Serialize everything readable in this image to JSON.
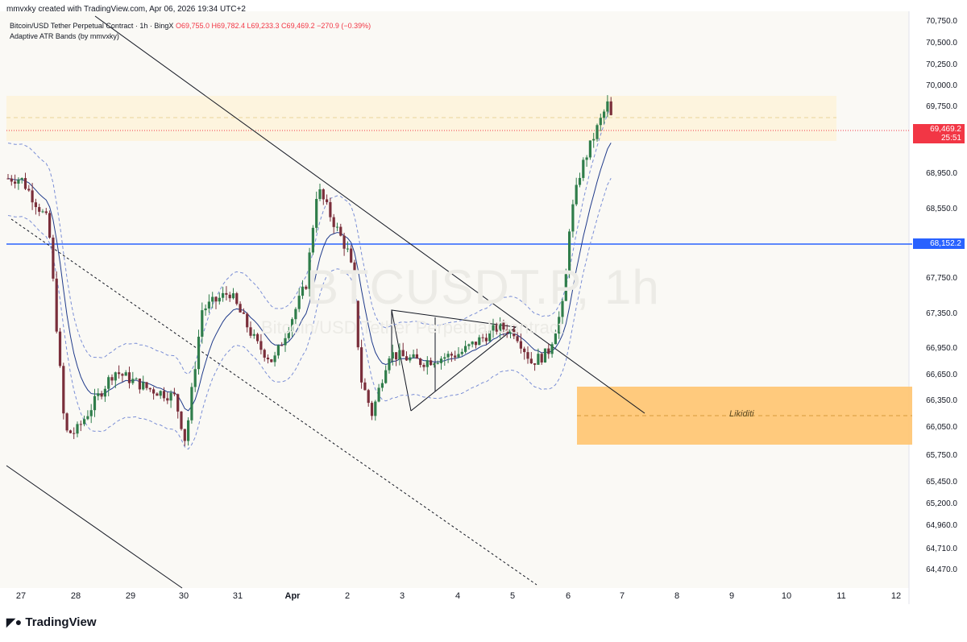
{
  "header": {
    "credit": "mmvxky created with TradingView.com, Apr 06, 2026 19:34 UTC+2",
    "symbol_line": "Bitcoin/USD Tether Perpetual Contract · 1h · BingX",
    "ohlc": "O69,755.0  H69,782.4  L69,233.3  C69,469.2  −270.9 (−0.39%)",
    "indicator": "Adaptive ATR Bands (by mmvxky)"
  },
  "watermark": {
    "ticker": "BTCUSDT.P, 1h",
    "name": "Bitcoin/USD Tether Perpetual Contract"
  },
  "brand": "TradingView",
  "price_tags": {
    "last": "69,469.2",
    "countdown": "25:51",
    "hline": "68,152.2",
    "last_color": "#f23645",
    "hline_color": "#2962ff"
  },
  "zone_label": "Likiditi",
  "chart_data": {
    "type": "candlestick",
    "title": "",
    "y_ticks": [
      "70,750.0",
      "70,500.0",
      "70,250.0",
      "70,000.0",
      "69,750.0",
      "68,950.0",
      "68,550.0",
      "67,750.0",
      "67,350.0",
      "66,950.0",
      "66,650.0",
      "66,350.0",
      "66,050.0",
      "65,750.0",
      "65,450.0",
      "65,200.0",
      "64,960.0",
      "64,710.0",
      "64,470.0"
    ],
    "x_ticks": [
      "27",
      "28",
      "29",
      "30",
      "31",
      "Apr",
      "2",
      "3",
      "4",
      "5",
      "6",
      "7",
      "8",
      "9",
      "10",
      "11",
      "12"
    ],
    "ylim": [
      64300,
      70900
    ],
    "horizontal_level": 68152.2,
    "last_price": 69469.2,
    "price_path": [
      {
        "t": "27",
        "v": 68900
      },
      {
        "t": "27.5",
        "v": 68400
      },
      {
        "t": "27.8",
        "v": 66000
      },
      {
        "t": "28",
        "v": 66000
      },
      {
        "t": "28.7",
        "v": 66700
      },
      {
        "t": "29.3",
        "v": 66500
      },
      {
        "t": "29.8",
        "v": 66400
      },
      {
        "t": "30",
        "v": 65900
      },
      {
        "t": "30.3",
        "v": 67400
      },
      {
        "t": "30.8",
        "v": 67600
      },
      {
        "t": "31.3",
        "v": 67000
      },
      {
        "t": "31.6",
        "v": 66800
      },
      {
        "t": "Apr 1.2",
        "v": 67700
      },
      {
        "t": "Apr 1.4",
        "v": 68800
      },
      {
        "t": "Apr 1.7",
        "v": 68400
      },
      {
        "t": "2",
        "v": 68000
      },
      {
        "t": "2.2",
        "v": 66600
      },
      {
        "t": "2.4",
        "v": 66200
      },
      {
        "t": "2.7",
        "v": 66900
      },
      {
        "t": "3.3",
        "v": 66800
      },
      {
        "t": "4",
        "v": 66900
      },
      {
        "t": "4.7",
        "v": 67200
      },
      {
        "t": "5",
        "v": 67150
      },
      {
        "t": "5.3",
        "v": 66800
      },
      {
        "t": "5.6",
        "v": 66900
      },
      {
        "t": "5.9",
        "v": 67500
      },
      {
        "t": "6",
        "v": 68400
      },
      {
        "t": "6.2",
        "v": 69000
      },
      {
        "t": "6.5",
        "v": 69500
      },
      {
        "t": "6.7",
        "v": 69800
      },
      {
        "t": "6.8",
        "v": 69469
      }
    ],
    "resistance_zone": [
      69550,
      69900
    ],
    "liquidity_zone": [
      65950,
      66550
    ],
    "legend": "none",
    "grid": false
  }
}
